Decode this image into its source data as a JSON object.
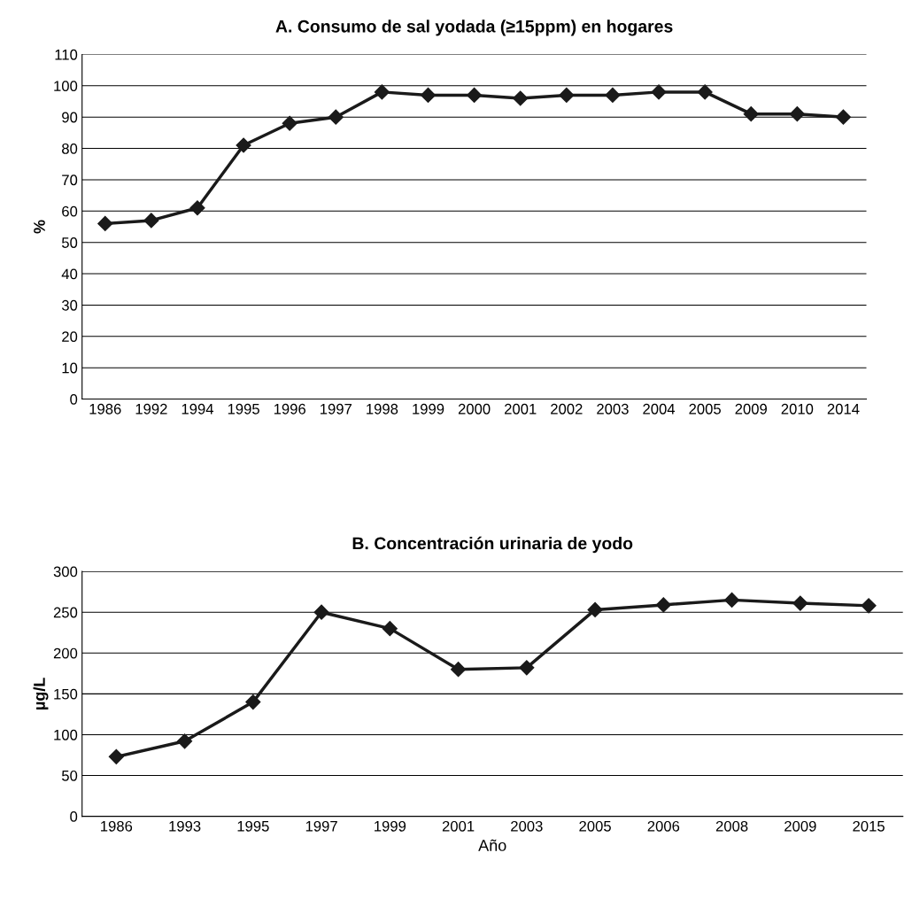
{
  "chart_data": [
    {
      "type": "line",
      "title": "A. Consumo de sal yodada (≥15ppm) en hogares",
      "ylabel": "%",
      "categories": [
        "1986",
        "1992",
        "1994",
        "1995",
        "1996",
        "1997",
        "1998",
        "1999",
        "2000",
        "2001",
        "2002",
        "2003",
        "2004",
        "2005",
        "2009",
        "2010",
        "2014"
      ],
      "series": [
        {
          "color": "#1a1a1a",
          "values": [
            56,
            57,
            61,
            81,
            88,
            90,
            98,
            97,
            97,
            96,
            97,
            97,
            98,
            98,
            91,
            91,
            90
          ]
        }
      ],
      "ylim": [
        0,
        110
      ],
      "yticks": [
        0,
        10,
        20,
        30,
        40,
        50,
        60,
        70,
        80,
        90,
        100,
        110
      ],
      "grid": "y",
      "legend": false,
      "marker": "diamond",
      "line_style": "solid"
    },
    {
      "type": "line",
      "title": "B. Concentración urinaria de yodo",
      "ylabel": "µg/L",
      "xlabel": "Año",
      "categories": [
        "1986",
        "1993",
        "1995",
        "1997",
        "1999",
        "2001",
        "2003",
        "2005",
        "2006",
        "2008",
        "2009",
        "2015"
      ],
      "series": [
        {
          "color": "#1a1a1a",
          "values": [
            73,
            92,
            140,
            250,
            230,
            180,
            182,
            253,
            259,
            265,
            261,
            258
          ]
        }
      ],
      "ylim": [
        0,
        300
      ],
      "yticks": [
        0,
        50,
        100,
        150,
        200,
        250,
        300
      ],
      "grid": "y",
      "legend": false,
      "marker": "diamond",
      "line_style": "solid"
    }
  ]
}
